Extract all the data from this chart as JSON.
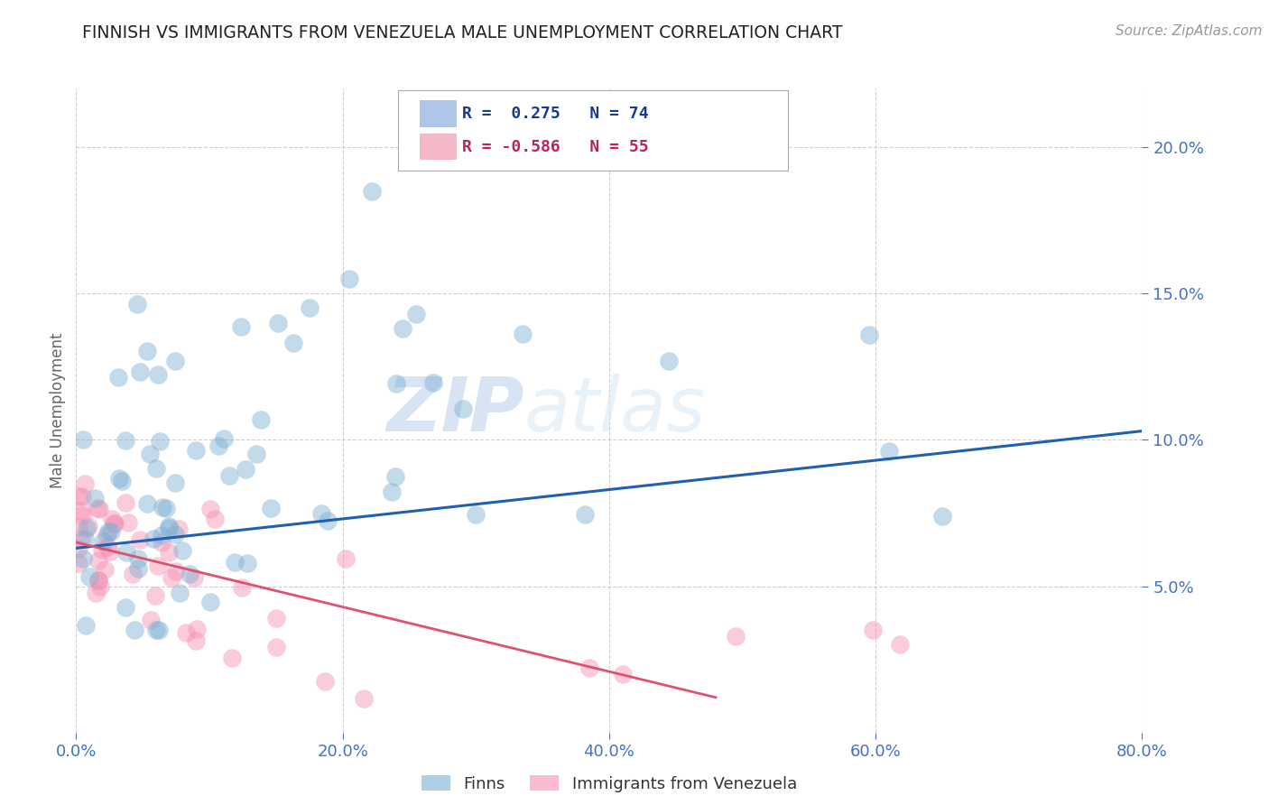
{
  "title": "FINNISH VS IMMIGRANTS FROM VENEZUELA MALE UNEMPLOYMENT CORRELATION CHART",
  "source": "Source: ZipAtlas.com",
  "ylabel": "Male Unemployment",
  "xlim": [
    0.0,
    0.8
  ],
  "ylim": [
    0.0,
    0.22
  ],
  "xticks": [
    0.0,
    0.2,
    0.4,
    0.6,
    0.8
  ],
  "yticks": [
    0.05,
    0.1,
    0.15,
    0.2
  ],
  "ytick_labels": [
    "5.0%",
    "10.0%",
    "15.0%",
    "20.0%"
  ],
  "xtick_labels": [
    "0.0%",
    "20.0%",
    "40.0%",
    "60.0%",
    "80.0%"
  ],
  "legend_R_entries": [
    {
      "label": "R =  0.275   N = 74",
      "color": "#6baed6"
    },
    {
      "label": "R = -0.586   N = 55",
      "color": "#f48fb1"
    }
  ],
  "legend_bottom": [
    "Finns",
    "Immigrants from Venezuela"
  ],
  "finns_color": "#7bafd4",
  "venezuela_color": "#f48fb1",
  "finns_line_color": "#2060b0",
  "venezuela_line_color": "#e05070",
  "watermark_zip": "ZIP",
  "watermark_atlas": "atlas",
  "finns_R": 0.275,
  "finns_N": 74,
  "venezuela_R": -0.586,
  "venezuela_N": 55,
  "finns_line_x0": 0.0,
  "finns_line_y0": 0.063,
  "finns_line_x1": 0.8,
  "finns_line_y1": 0.103,
  "venezuela_line_x0": 0.0,
  "venezuela_line_y0": 0.065,
  "venezuela_line_x1": 0.48,
  "venezuela_line_y1": 0.012
}
